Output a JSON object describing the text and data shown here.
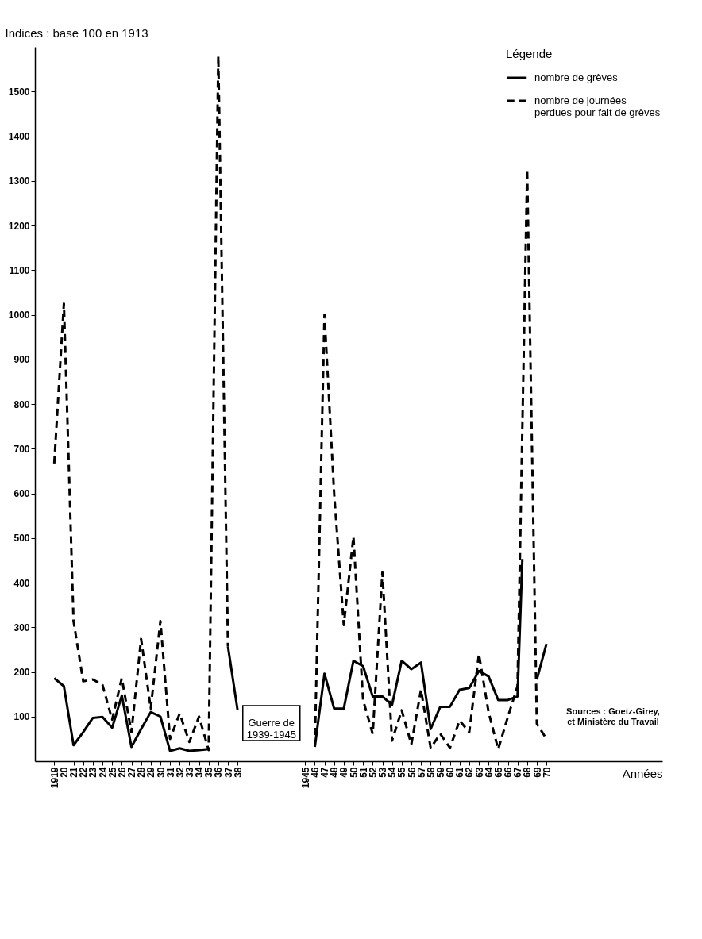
{
  "chart_data": {
    "type": "line",
    "ylabel": "Indices : base 100 en 1913",
    "xlabel": "Années",
    "legend_title": "Légende",
    "legend": "top right",
    "annotations": [
      "Guerre de\n1939-1945",
      "Sources : Goetz-Girey,\net Ministère du Travail"
    ],
    "xlim": [
      1917,
      1982
    ],
    "ylim": [
      0,
      1600
    ],
    "xticks": [
      1919,
      {
        "value": 1920,
        "label": "20"
      },
      {
        "value": 1921,
        "label": "21"
      },
      {
        "value": 1922,
        "label": "22"
      },
      {
        "value": 1923,
        "label": "23"
      },
      {
        "value": 1924,
        "label": "24"
      },
      {
        "value": 1925,
        "label": "25"
      },
      {
        "value": 1926,
        "label": "26"
      },
      {
        "value": 1927,
        "label": "27"
      },
      {
        "value": 1928,
        "label": "28"
      },
      {
        "value": 1929,
        "label": "29"
      },
      {
        "value": 1930,
        "label": "30"
      },
      {
        "value": 1931,
        "label": "31"
      },
      {
        "value": 1932,
        "label": "32"
      },
      {
        "value": 1933,
        "label": "33"
      },
      {
        "value": 1934,
        "label": "34"
      },
      {
        "value": 1935,
        "label": "35"
      },
      {
        "value": 1936,
        "label": "36"
      },
      {
        "value": 1937,
        "label": "37"
      },
      {
        "value": 1938,
        "label": "38"
      },
      1945,
      {
        "value": 1946,
        "label": "46"
      },
      {
        "value": 1947,
        "label": "47"
      },
      {
        "value": 1948,
        "label": "48"
      },
      {
        "value": 1949,
        "label": "49"
      },
      {
        "value": 1950,
        "label": "50"
      },
      {
        "value": 1951,
        "label": "51"
      },
      {
        "value": 1952,
        "label": "52"
      },
      {
        "value": 1953,
        "label": "53"
      },
      {
        "value": 1954,
        "label": "54"
      },
      {
        "value": 1955,
        "label": "55"
      },
      {
        "value": 1956,
        "label": "56"
      },
      {
        "value": 1957,
        "label": "57"
      },
      {
        "value": 1958,
        "label": "58"
      },
      {
        "value": 1959,
        "label": "59"
      },
      {
        "value": 1960,
        "label": "60"
      },
      {
        "value": 1961,
        "label": "61"
      },
      {
        "value": 1962,
        "label": "62"
      },
      {
        "value": 1963,
        "label": "63"
      },
      {
        "value": 1964,
        "label": "64"
      },
      {
        "value": 1965,
        "label": "65"
      },
      {
        "value": 1966,
        "label": "66"
      },
      {
        "value": 1967,
        "label": "67"
      },
      {
        "value": 1968,
        "label": "68"
      },
      {
        "value": 1969,
        "label": "69"
      },
      {
        "value": 1970,
        "label": "70"
      }
    ],
    "yticks": [
      100,
      200,
      300,
      400,
      500,
      600,
      700,
      800,
      900,
      1000,
      1100,
      1200,
      1300,
      1400,
      1500
    ],
    "series": [
      {
        "name": "nombre de grèves",
        "color": "#000000",
        "line_style": "solid",
        "x": [
          1919,
          1920,
          1921,
          1922,
          1923,
          1924,
          1925,
          1926,
          1927,
          1928,
          1929,
          1930,
          1931,
          1932,
          1933,
          1934,
          1935,
          1937,
          1938,
          1946,
          1947,
          1948,
          1949,
          1950,
          1951,
          1952,
          1953,
          1954,
          1955,
          1956,
          1957,
          1958,
          1959,
          1960,
          1961,
          1962,
          1963,
          1964,
          1965,
          1966,
          1967,
          1967.5,
          1969,
          1970
        ],
        "values": [
          186,
          168,
          36,
          65,
          97,
          99,
          75,
          147,
          32,
          72,
          110,
          100,
          23,
          29,
          23,
          25,
          27,
          257,
          114,
          32,
          196,
          118,
          118,
          225,
          213,
          145,
          145,
          126,
          225,
          206,
          221,
          72,
          122,
          122,
          160,
          164,
          202,
          190,
          137,
          137,
          145,
          453,
          183,
          263
        ]
      },
      {
        "name": "nombre de journées\nperdues pour fait de grèves",
        "color": "#000000",
        "line_style": "dashed",
        "x": [
          1919,
          1920,
          1921,
          1922,
          1923,
          1924,
          1925,
          1926,
          1927,
          1928,
          1929,
          1930,
          1931,
          1932,
          1933,
          1934,
          1935,
          1936,
          1937,
          1946,
          1947,
          1948,
          1949,
          1950,
          1951,
          1952,
          1953,
          1954,
          1955,
          1956,
          1957,
          1958,
          1959,
          1960,
          1961,
          1962,
          1963,
          1964,
          1965,
          1966,
          1967,
          1968,
          1969,
          1970
        ],
        "values": [
          667,
          1025,
          314,
          179,
          183,
          171,
          93,
          186,
          65,
          274,
          118,
          314,
          50,
          107,
          43,
          100,
          25,
          1580,
          257,
          32,
          1000,
          600,
          305,
          503,
          137,
          61,
          423,
          46,
          114,
          38,
          160,
          30,
          61,
          30,
          91,
          65,
          240,
          110,
          27,
          99,
          168,
          1325,
          84,
          50
        ]
      }
    ]
  }
}
